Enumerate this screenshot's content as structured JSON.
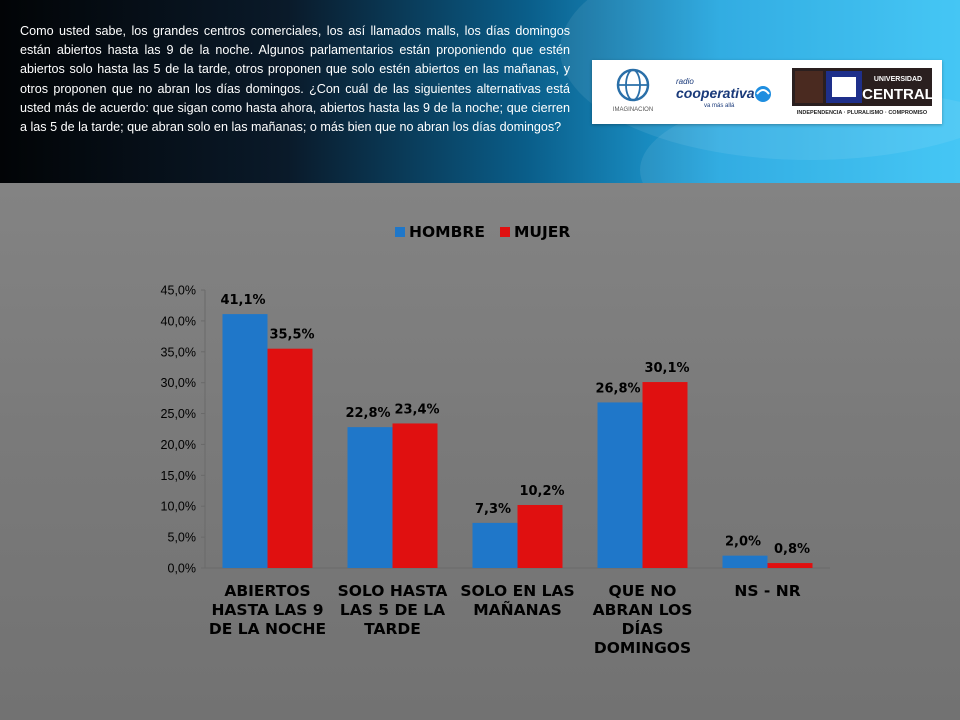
{
  "header": {
    "question": "Como usted sabe, los grandes centros comerciales, los así llamados malls, los días domingos están abiertos hasta las 9 de la noche. Algunos parlamentarios están proponiendo que estén abiertos solo hasta las 5 de la tarde, otros proponen que solo estén abiertos en las mañanas, y otros proponen que no abran los días domingos. ¿Con cuál de las siguientes alternativas está usted más de acuerdo: que sigan como hasta ahora, abiertos hasta las 9 de la noche; que cierren a las 5 de la tarde; que abran solo en las mañanas; o más bien que no abran los días domingos?"
  },
  "logos": {
    "imaginacion": "IMAGINACION",
    "cooperativa_radio": "radio",
    "cooperativa_name": "cooperativa",
    "cooperativa_tagline": "va más allá",
    "ucentral_top": "UNIVERSIDAD",
    "ucentral_name": "CENTRAL",
    "ucentral_motto": "INDEPENDENCIA · PLURALISMO · COMPROMISO"
  },
  "colors": {
    "hombre": "#1f77c9",
    "mujer": "#e01010"
  },
  "chart_data": {
    "type": "bar",
    "categories": [
      [
        "ABIERTOS",
        "HASTA LAS 9",
        "DE LA NOCHE"
      ],
      [
        "SOLO HASTA",
        "LAS 5 DE LA",
        "TARDE"
      ],
      [
        "SOLO EN LAS",
        "MAÑANAS"
      ],
      [
        "QUE NO",
        "ABRAN LOS",
        "DÍAS",
        "DOMINGOS"
      ],
      [
        "NS - NR"
      ]
    ],
    "series": [
      {
        "name": "HOMBRE",
        "values": [
          41.1,
          22.8,
          7.3,
          26.8,
          2.0
        ],
        "labels": [
          "41,1%",
          "22,8%",
          "7,3%",
          "26,8%",
          "2,0%"
        ]
      },
      {
        "name": "MUJER",
        "values": [
          35.5,
          23.4,
          10.2,
          30.1,
          0.8
        ],
        "labels": [
          "35,5%",
          "23,4%",
          "10,2%",
          "30,1%",
          "0,8%"
        ]
      }
    ],
    "ylim": [
      0,
      45
    ],
    "yticks": [
      "0,0%",
      "5,0%",
      "10,0%",
      "15,0%",
      "20,0%",
      "25,0%",
      "30,0%",
      "35,0%",
      "40,0%",
      "45,0%"
    ],
    "legend_position": "top",
    "grid": false
  }
}
